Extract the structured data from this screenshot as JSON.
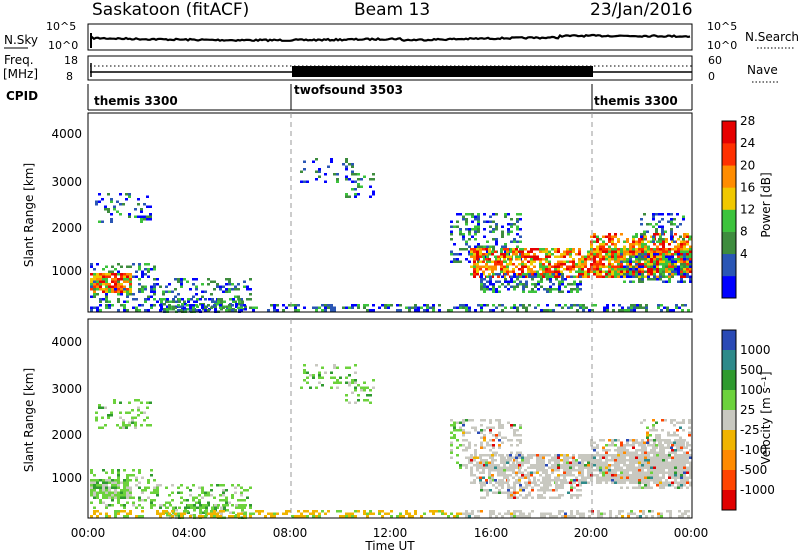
{
  "header": {
    "station": "Saskatoon (fitACF)",
    "beam": "Beam 13",
    "date": "23/Jan/2016"
  },
  "noise_panel": {
    "left_label": "N.Sky",
    "right_label": "N.Search",
    "left_ticks": [
      "10^5",
      "10^0"
    ],
    "right_ticks": [
      "10^5",
      "10^0"
    ]
  },
  "freq_panel": {
    "left_label": "Freq.",
    "left_unit": "[MHz]",
    "left_ticks": [
      "18",
      "8"
    ],
    "right_label": "Nave",
    "right_ticks": [
      "60",
      "0"
    ]
  },
  "cpid": {
    "label": "CPID",
    "segments": [
      {
        "name": "themis 3300",
        "start_h": 0,
        "end_h": 8
      },
      {
        "name": "twofsound 3503",
        "start_h": 8,
        "end_h": 20
      },
      {
        "name": "themis 3300",
        "start_h": 20,
        "end_h": 24
      }
    ]
  },
  "power_panel": {
    "ylabel": "Slant Range [km]",
    "yticks": [
      "4000",
      "3000",
      "2000",
      "1000"
    ],
    "colorbar_label": "Power [dB]",
    "colorbar_ticks": [
      "28",
      "24",
      "20",
      "16",
      "12",
      "8",
      "4"
    ],
    "colors": [
      "#0000ff",
      "#2a56b5",
      "#3e8c3e",
      "#3cc33c",
      "#f0c800",
      "#ff8c00",
      "#ff3000",
      "#e60000"
    ]
  },
  "velocity_panel": {
    "ylabel": "Slant Range [km]",
    "yticks": [
      "4000",
      "3000",
      "2000",
      "1000"
    ],
    "colorbar_label": "Velocity [m s⁻¹]",
    "colorbar_ticks": [
      "1000",
      "500",
      "100",
      "25",
      "-25",
      "-100",
      "-500",
      "-1000"
    ],
    "colors": [
      "#2a4ab5",
      "#2e8a8a",
      "#2f9a2f",
      "#6cd23c",
      "#c8c8c0",
      "#f0b400",
      "#ff8a00",
      "#ff4400",
      "#e00000"
    ]
  },
  "time_axis": {
    "label": "Time UT",
    "ticks": [
      "00:00",
      "04:00",
      "08:00",
      "12:00",
      "16:00",
      "20:00",
      "00:00"
    ]
  }
}
